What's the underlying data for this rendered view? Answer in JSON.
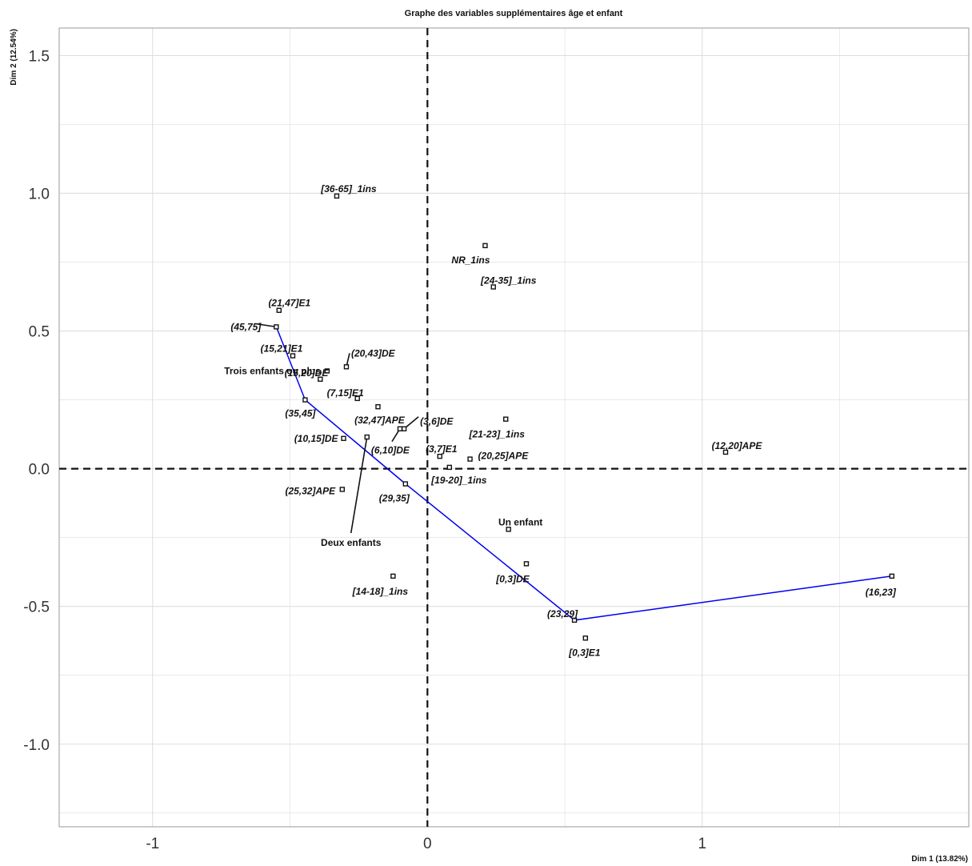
{
  "chart_data": {
    "type": "scatter",
    "title": "Graphe des variables supplémentaires âge et enfant",
    "xlabel": "Dim 1 (13.82%)",
    "ylabel": "Dim 2 (12.54%)",
    "xlim": [
      -1.34,
      1.97
    ],
    "ylim": [
      -1.3,
      1.6
    ],
    "xticks": [
      -1,
      0,
      1
    ],
    "xtick_labels": [
      "-1",
      "0",
      "1"
    ],
    "yticks": [
      -1.0,
      -0.5,
      0.0,
      0.5,
      1.0,
      1.5
    ],
    "ytick_labels": [
      "-1.0",
      "-0.5",
      "0.0",
      "0.5",
      "1.0",
      "1.5"
    ],
    "grid": true,
    "reference_lines": {
      "x": 0,
      "y": 0,
      "style": "dashed"
    },
    "points": [
      {
        "label": "[36-65]_1ins",
        "x": -0.33,
        "y": 0.99
      },
      {
        "label": "NR_1ins",
        "x": 0.21,
        "y": 0.81
      },
      {
        "label": "[24-35]_1ins",
        "x": 0.24,
        "y": 0.66
      },
      {
        "label": "(21,47]E1",
        "x": -0.54,
        "y": 0.575
      },
      {
        "label": "(45,75]",
        "x": -0.55,
        "y": 0.515
      },
      {
        "label": "(15,21]E1",
        "x": -0.49,
        "y": 0.41
      },
      {
        "label": "(20,43]DE",
        "x": -0.295,
        "y": 0.37
      },
      {
        "label": "Trois enfants ou plus",
        "x": -0.365,
        "y": 0.355,
        "italic": false
      },
      {
        "label": "(15,20]DE",
        "x": -0.39,
        "y": 0.325
      },
      {
        "label": "(7,15]E1",
        "x": -0.255,
        "y": 0.255
      },
      {
        "label": "(35,45]",
        "x": -0.445,
        "y": 0.25
      },
      {
        "label": "(32,47]APE",
        "x": -0.18,
        "y": 0.225
      },
      {
        "label": "(3,6]DE",
        "x": -0.085,
        "y": 0.145
      },
      {
        "label": "(6,10]DE",
        "x": -0.1,
        "y": 0.145
      },
      {
        "label": "[21-23]_1ins",
        "x": 0.285,
        "y": 0.18
      },
      {
        "label": "(10,15]DE",
        "x": -0.305,
        "y": 0.11
      },
      {
        "label": "Deux enfants",
        "x": -0.22,
        "y": 0.115,
        "italic": false
      },
      {
        "label": "(3,7]E1",
        "x": 0.045,
        "y": 0.045
      },
      {
        "label": "(20,25]APE",
        "x": 0.155,
        "y": 0.035
      },
      {
        "label": "[19-20]_1ins",
        "x": 0.08,
        "y": 0.005
      },
      {
        "label": "(12,20]APE",
        "x": 1.085,
        "y": 0.06
      },
      {
        "label": "(25,32]APE",
        "x": -0.31,
        "y": -0.075
      },
      {
        "label": "(29,35]",
        "x": -0.08,
        "y": -0.055
      },
      {
        "label": "Un enfant",
        "x": 0.295,
        "y": -0.22,
        "italic": false
      },
      {
        "label": "[0,3]DE",
        "x": 0.36,
        "y": -0.345
      },
      {
        "label": "[14-18]_1ins",
        "x": -0.125,
        "y": -0.39
      },
      {
        "label": "(16,23]",
        "x": 1.69,
        "y": -0.39
      },
      {
        "label": "(23,29]",
        "x": 0.535,
        "y": -0.55
      },
      {
        "label": "[0,3]E1",
        "x": 0.575,
        "y": -0.615
      }
    ],
    "trajectory": {
      "color": "#0000ee",
      "points": [
        {
          "x": -0.55,
          "y": 0.515
        },
        {
          "x": -0.445,
          "y": 0.25
        },
        {
          "x": -0.08,
          "y": -0.055
        },
        {
          "x": 0.535,
          "y": -0.55
        },
        {
          "x": 1.69,
          "y": -0.39
        }
      ]
    },
    "colors": {
      "grid": "#dedede",
      "axes": "#111111",
      "line": "#0000ee",
      "point": "#111111"
    }
  }
}
